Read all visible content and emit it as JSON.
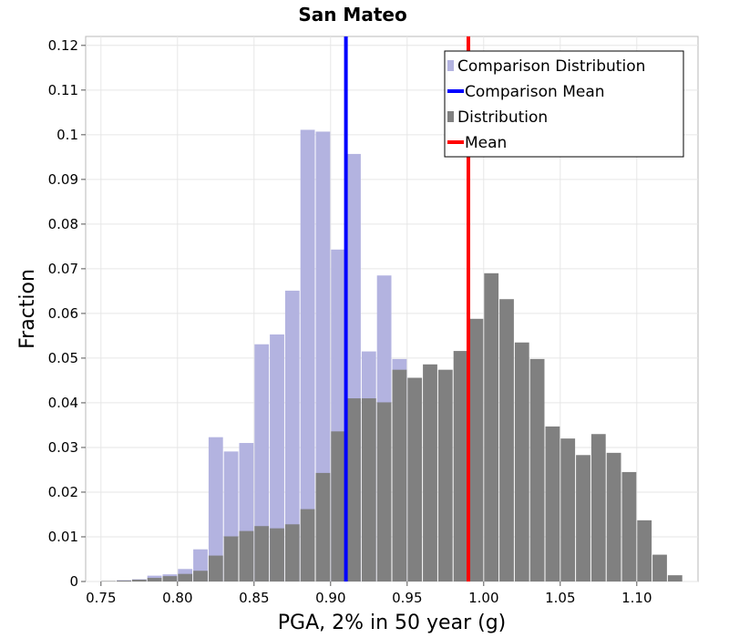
{
  "chart_data": {
    "type": "bar",
    "title": "San Mateo",
    "xlabel": "PGA, 2% in 50 year (g)",
    "ylabel": "Fraction",
    "xlim": [
      0.74,
      1.14
    ],
    "ylim": [
      0,
      0.122
    ],
    "bin_width": 0.01,
    "x_ticks": [
      {
        "value": 0.75,
        "label": "0.75"
      },
      {
        "value": 0.8,
        "label": "0.80"
      },
      {
        "value": 0.85,
        "label": "0.85"
      },
      {
        "value": 0.9,
        "label": "0.90"
      },
      {
        "value": 0.95,
        "label": "0.95"
      },
      {
        "value": 1.0,
        "label": "1.00"
      },
      {
        "value": 1.05,
        "label": "1.05"
      },
      {
        "value": 1.1,
        "label": "1.10"
      }
    ],
    "y_ticks": [
      {
        "value": 0,
        "label": "0"
      },
      {
        "value": 0.01,
        "label": "0.01"
      },
      {
        "value": 0.02,
        "label": "0.02"
      },
      {
        "value": 0.03,
        "label": "0.03"
      },
      {
        "value": 0.04,
        "label": "0.04"
      },
      {
        "value": 0.05,
        "label": "0.05"
      },
      {
        "value": 0.06,
        "label": "0.06"
      },
      {
        "value": 0.07,
        "label": "0.07"
      },
      {
        "value": 0.08,
        "label": "0.08"
      },
      {
        "value": 0.09,
        "label": "0.09"
      },
      {
        "value": 0.1,
        "label": "0.1"
      },
      {
        "value": 0.11,
        "label": "0.11"
      },
      {
        "value": 0.12,
        "label": "0.12"
      }
    ],
    "grid": true,
    "legend_position": "top-right",
    "series": [
      {
        "name": "Comparison Distribution",
        "kind": "histogram",
        "color": "#b3b3e0",
        "x": [
          0.755,
          0.765,
          0.775,
          0.785,
          0.795,
          0.805,
          0.815,
          0.825,
          0.835,
          0.845,
          0.855,
          0.865,
          0.875,
          0.885,
          0.895,
          0.905,
          0.915,
          0.925,
          0.935,
          0.945
        ],
        "values": [
          0.0001,
          0.0003,
          0.0005,
          0.0013,
          0.0016,
          0.0028,
          0.0072,
          0.0323,
          0.0291,
          0.031,
          0.0531,
          0.0553,
          0.0651,
          0.1011,
          0.1007,
          0.0743,
          0.0957,
          0.0515,
          0.0685,
          0.0498
        ]
      },
      {
        "name": "Comparison Mean",
        "kind": "vline",
        "color": "#0000ff",
        "x": 0.91
      },
      {
        "name": "Distribution",
        "kind": "histogram",
        "color": "#808080",
        "x": [
          0.755,
          0.765,
          0.775,
          0.785,
          0.795,
          0.805,
          0.815,
          0.825,
          0.835,
          0.845,
          0.855,
          0.865,
          0.875,
          0.885,
          0.895,
          0.905,
          0.915,
          0.925,
          0.935,
          0.945,
          0.955,
          0.965,
          0.975,
          0.985,
          0.995,
          1.005,
          1.015,
          1.025,
          1.035,
          1.045,
          1.055,
          1.065,
          1.075,
          1.085,
          1.095,
          1.105,
          1.115,
          1.125
        ],
        "values": [
          0.0001,
          0.0002,
          0.0004,
          0.0008,
          0.0012,
          0.0017,
          0.0024,
          0.0058,
          0.0101,
          0.0113,
          0.0124,
          0.0119,
          0.0128,
          0.0162,
          0.0243,
          0.0336,
          0.041,
          0.041,
          0.0401,
          0.0474,
          0.0456,
          0.0486,
          0.0474,
          0.0516,
          0.0588,
          0.069,
          0.0632,
          0.0535,
          0.0498,
          0.0347,
          0.032,
          0.0283,
          0.033,
          0.0288,
          0.0245,
          0.0137,
          0.006,
          0.0014
        ]
      },
      {
        "name": "Mean",
        "kind": "vline",
        "color": "#ff0000",
        "x": 0.99
      }
    ]
  }
}
